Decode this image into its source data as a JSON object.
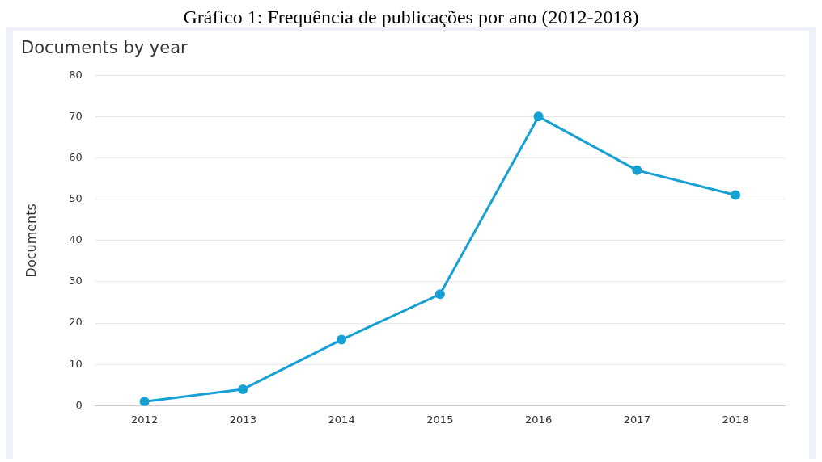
{
  "chart_data": {
    "type": "line",
    "title": "Gráfico 1: Frequência de publicações por ano (2012-2018)",
    "subtitle": "Documents by year",
    "ylabel": "Documents",
    "categories": [
      "2012",
      "2013",
      "2014",
      "2015",
      "2016",
      "2017",
      "2018"
    ],
    "series": [
      {
        "color": "#16a0d4",
        "values": [
          1,
          4,
          16,
          27,
          70,
          57,
          51
        ]
      }
    ],
    "ylim": [
      0,
      80
    ],
    "yticks": [
      0,
      10,
      20,
      30,
      40,
      50,
      60,
      70,
      80
    ],
    "grid": "y",
    "marker": "circle",
    "line_style": "solid",
    "legend": false
  }
}
